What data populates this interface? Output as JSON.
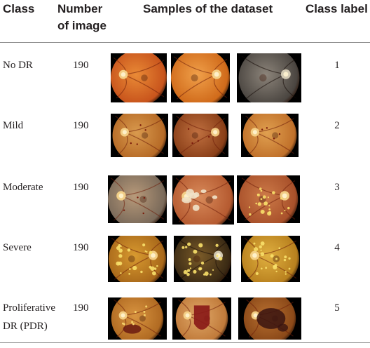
{
  "header": {
    "class": "Class",
    "number_line1": "Number",
    "number_line2": "of image",
    "samples": "Samples of the dataset",
    "class_label": "Class label"
  },
  "rows": [
    {
      "class_lines": [
        "No DR"
      ],
      "count": "190",
      "label": "1",
      "images": [
        {
          "tone": "#c8541c",
          "bright": "#e98a36",
          "disc_side": "left",
          "lesions": "none",
          "dark": false
        },
        {
          "tone": "#d06a1a",
          "bright": "#f0a04a",
          "disc_side": "right",
          "lesions": "none",
          "dark": false
        },
        {
          "tone": "#4a4540",
          "bright": "#8c847a",
          "disc_side": "right",
          "lesions": "none",
          "dark": true
        }
      ]
    },
    {
      "class_lines": [
        "Mild"
      ],
      "count": "190",
      "label": "2",
      "images": [
        {
          "tone": "#b66a26",
          "bright": "#d99a4e",
          "disc_side": "left",
          "lesions": "few",
          "dark": false
        },
        {
          "tone": "#8a3f18",
          "bright": "#c07040",
          "disc_side": "right",
          "lesions": "few",
          "dark": false
        },
        {
          "tone": "#c0702a",
          "bright": "#e0a050",
          "disc_side": "left",
          "lesions": "few",
          "dark": false
        }
      ]
    },
    {
      "class_lines": [
        "Moderate"
      ],
      "count": "190",
      "label": "3",
      "images": [
        {
          "tone": "#7a6a5a",
          "bright": "#b89a7a",
          "disc_side": "left",
          "lesions": "few",
          "dark": false
        },
        {
          "tone": "#b55a30",
          "bright": "#d88a5a",
          "disc_side": "left",
          "lesions": "patches",
          "dark": false
        },
        {
          "tone": "#a8502a",
          "bright": "#cc7a48",
          "disc_side": "right",
          "lesions": "exudates",
          "dark": false
        }
      ]
    },
    {
      "class_lines": [
        "Severe"
      ],
      "count": "190",
      "label": "4",
      "images": [
        {
          "tone": "#a8681a",
          "bright": "#d89a30",
          "disc_side": "right",
          "lesions": "exudates",
          "dark": false
        },
        {
          "tone": "#3a2a14",
          "bright": "#7a5a28",
          "disc_side": "right",
          "lesions": "exudates",
          "dark": true
        },
        {
          "tone": "#b8801e",
          "bright": "#e0b040",
          "disc_side": "left",
          "lesions": "exudates",
          "dark": false
        }
      ]
    },
    {
      "class_lines": [
        "Proliferative",
        "DR (PDR)"
      ],
      "count": "190",
      "label": "5",
      "images": [
        {
          "tone": "#b06a22",
          "bright": "#d89440",
          "disc_side": "left",
          "lesions": "hemorrhage",
          "dark": false
        },
        {
          "tone": "#c07a3a",
          "bright": "#e0a868",
          "disc_side": "left",
          "lesions": "big-hemorrhage",
          "dark": false
        },
        {
          "tone": "#8a4818",
          "bright": "#b87030",
          "disc_side": "left",
          "lesions": "dark-hemorrhage",
          "dark": false
        }
      ]
    }
  ]
}
